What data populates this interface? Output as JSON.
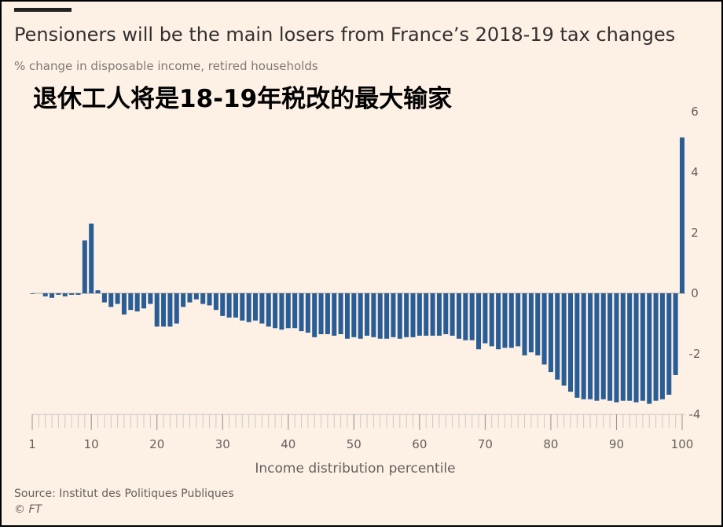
{
  "chart_data": {
    "type": "bar",
    "title": "Pensioners will be the main losers from France’s 2018-19 tax changes",
    "subtitle": "% change in disposable income, retired households",
    "annotation": "退休工人将是18-19年税改的最大输家",
    "x_label": "Income distribution percentile",
    "source": "Source: Institut des Politiques Publiques",
    "credit": "© FT",
    "color": "#2a5d96",
    "x": [
      1,
      2,
      3,
      4,
      5,
      6,
      7,
      8,
      9,
      10,
      11,
      12,
      13,
      14,
      15,
      16,
      17,
      18,
      19,
      20,
      21,
      22,
      23,
      24,
      25,
      26,
      27,
      28,
      29,
      30,
      31,
      32,
      33,
      34,
      35,
      36,
      37,
      38,
      39,
      40,
      41,
      42,
      43,
      44,
      45,
      46,
      47,
      48,
      49,
      50,
      51,
      52,
      53,
      54,
      55,
      56,
      57,
      58,
      59,
      60,
      61,
      62,
      63,
      64,
      65,
      66,
      67,
      68,
      69,
      70,
      71,
      72,
      73,
      74,
      75,
      76,
      77,
      78,
      79,
      80,
      81,
      82,
      83,
      84,
      85,
      86,
      87,
      88,
      89,
      90,
      91,
      92,
      93,
      94,
      95,
      96,
      97,
      98,
      99,
      100
    ],
    "values": [
      -0.02,
      0,
      -0.1,
      -0.15,
      -0.05,
      -0.1,
      -0.05,
      -0.05,
      1.75,
      2.3,
      0.1,
      -0.3,
      -0.45,
      -0.35,
      -0.7,
      -0.55,
      -0.6,
      -0.5,
      -0.35,
      -1.1,
      -1.1,
      -1.1,
      -1.0,
      -0.45,
      -0.3,
      -0.2,
      -0.35,
      -0.4,
      -0.55,
      -0.75,
      -0.8,
      -0.8,
      -0.9,
      -0.95,
      -0.9,
      -1.0,
      -1.1,
      -1.15,
      -1.2,
      -1.15,
      -1.15,
      -1.25,
      -1.3,
      -1.45,
      -1.35,
      -1.35,
      -1.4,
      -1.35,
      -1.5,
      -1.45,
      -1.5,
      -1.4,
      -1.45,
      -1.5,
      -1.5,
      -1.45,
      -1.5,
      -1.45,
      -1.45,
      -1.4,
      -1.4,
      -1.4,
      -1.4,
      -1.35,
      -1.4,
      -1.5,
      -1.55,
      -1.55,
      -1.85,
      -1.65,
      -1.75,
      -1.85,
      -1.8,
      -1.8,
      -1.75,
      -2.05,
      -1.95,
      -2.05,
      -2.35,
      -2.6,
      -2.85,
      -3.05,
      -3.25,
      -3.45,
      -3.5,
      -3.5,
      -3.55,
      -3.5,
      -3.55,
      -3.6,
      -3.55,
      -3.55,
      -3.6,
      -3.55,
      -3.65,
      -3.55,
      -3.5,
      -3.35,
      -2.7,
      5.15
    ],
    "xlim": [
      1,
      100
    ],
    "xticks": [
      1,
      10,
      20,
      30,
      40,
      50,
      60,
      70,
      80,
      90,
      100
    ],
    "ylim": [
      -4,
      6
    ],
    "yticks": [
      -4,
      -2,
      0,
      2,
      4,
      6
    ]
  }
}
